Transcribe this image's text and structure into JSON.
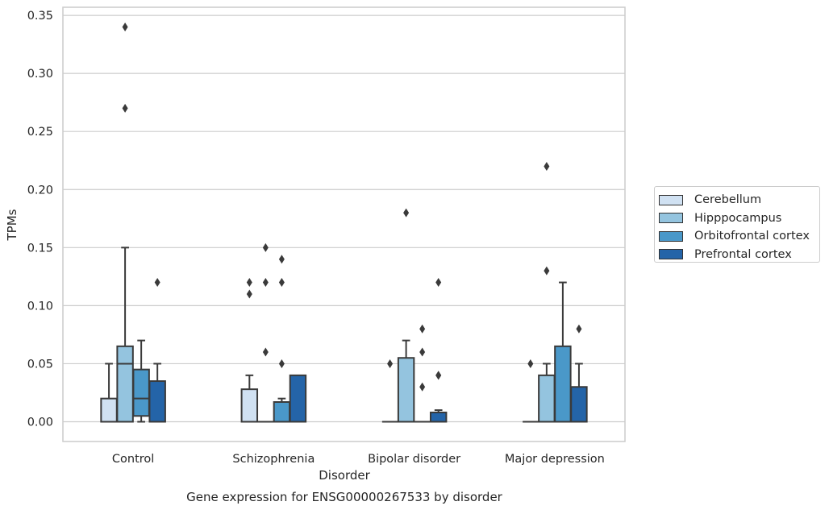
{
  "chart_data": {
    "type": "box",
    "title": "Gene expression for ENSG00000267533 by disorder",
    "xlabel": "Disorder",
    "ylabel": "TPMs",
    "ylim": [
      -0.017,
      0.357
    ],
    "yticks": [
      "0.00",
      "0.05",
      "0.10",
      "0.15",
      "0.20",
      "0.25",
      "0.30",
      "0.35"
    ],
    "ytick_values": [
      0,
      0.05,
      0.1,
      0.15,
      0.2,
      0.25,
      0.3,
      0.35
    ],
    "grid": "horizontal",
    "legend_position": "right",
    "categories": [
      "Control",
      "Schizophrenia",
      "Bipolar disorder",
      "Major depression"
    ],
    "series": [
      {
        "name": "Cerebellum",
        "color": "#d0e1f2",
        "boxes": [
          {
            "q1": 0,
            "median": 0,
            "q3": 0.02,
            "whisker_low": 0,
            "whisker_high": 0.05,
            "outliers": []
          },
          {
            "q1": 0,
            "median": 0,
            "q3": 0.028,
            "whisker_low": 0,
            "whisker_high": 0.04,
            "outliers": [
              0.11,
              0.12
            ]
          },
          {
            "q1": 0,
            "median": 0,
            "q3": 0,
            "whisker_low": 0,
            "whisker_high": 0,
            "outliers": [
              0.05
            ]
          },
          {
            "q1": 0,
            "median": 0,
            "q3": 0,
            "whisker_low": 0,
            "whisker_high": 0,
            "outliers": [
              0.05
            ]
          }
        ]
      },
      {
        "name": "Hipppocampus",
        "color": "#94c4df",
        "boxes": [
          {
            "q1": 0,
            "median": 0.05,
            "q3": 0.065,
            "whisker_low": 0,
            "whisker_high": 0.15,
            "outliers": [
              0.27,
              0.34
            ]
          },
          {
            "q1": 0,
            "median": 0,
            "q3": 0,
            "whisker_low": 0,
            "whisker_high": 0,
            "outliers": [
              0.06,
              0.12,
              0.15
            ]
          },
          {
            "q1": 0,
            "median": 0,
            "q3": 0.055,
            "whisker_low": 0,
            "whisker_high": 0.07,
            "outliers": [
              0.18
            ]
          },
          {
            "q1": 0,
            "median": 0,
            "q3": 0.04,
            "whisker_low": 0,
            "whisker_high": 0.05,
            "outliers": [
              0.13,
              0.22
            ]
          }
        ]
      },
      {
        "name": "Orbitofrontal cortex",
        "color": "#4a98c9",
        "boxes": [
          {
            "q1": 0.005,
            "median": 0.02,
            "q3": 0.045,
            "whisker_low": 0,
            "whisker_high": 0.07,
            "outliers": []
          },
          {
            "q1": 0,
            "median": 0,
            "q3": 0.017,
            "whisker_low": 0,
            "whisker_high": 0.02,
            "outliers": [
              0.05,
              0.12,
              0.14
            ]
          },
          {
            "q1": 0,
            "median": 0,
            "q3": 0,
            "whisker_low": 0,
            "whisker_high": 0,
            "outliers": [
              0.03,
              0.06,
              0.08
            ]
          },
          {
            "q1": 0,
            "median": 0,
            "q3": 0.065,
            "whisker_low": 0,
            "whisker_high": 0.12,
            "outliers": []
          }
        ]
      },
      {
        "name": "Prefrontal cortex",
        "color": "#2464a8",
        "boxes": [
          {
            "q1": 0,
            "median": 0,
            "q3": 0.035,
            "whisker_low": 0,
            "whisker_high": 0.05,
            "outliers": [
              0.12
            ]
          },
          {
            "q1": 0,
            "median": 0,
            "q3": 0.04,
            "whisker_low": 0,
            "whisker_high": 0.04,
            "outliers": []
          },
          {
            "q1": 0,
            "median": 0,
            "q3": 0.008,
            "whisker_low": 0,
            "whisker_high": 0.01,
            "outliers": [
              0.04,
              0.04,
              0.12
            ]
          },
          {
            "q1": 0,
            "median": 0,
            "q3": 0.03,
            "whisker_low": 0,
            "whisker_high": 0.05,
            "outliers": [
              0.08
            ]
          }
        ]
      }
    ]
  }
}
